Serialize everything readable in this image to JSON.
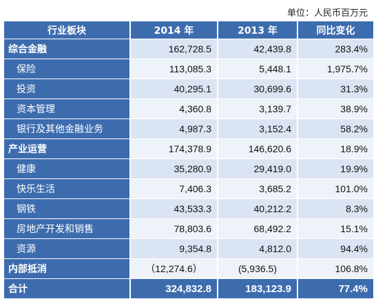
{
  "unit": "单位：人民币百万元",
  "headers": [
    "行业板块",
    "2014 年",
    "2013 年",
    "同比变化"
  ],
  "rows": [
    {
      "label": "综合金融",
      "v2014": "162,728.5",
      "v2013": "42,439.8",
      "change": "283.4%",
      "bold": true,
      "sub": false
    },
    {
      "label": "保险",
      "v2014": "113,085.3",
      "v2013": "5,448.1",
      "change": "1,975.7%",
      "bold": false,
      "sub": true
    },
    {
      "label": "投资",
      "v2014": "40,295.1",
      "v2013": "30,699.6",
      "change": "31.3%",
      "bold": false,
      "sub": true
    },
    {
      "label": "资本管理",
      "v2014": "4,360.8",
      "v2013": "3,139.7",
      "change": "38.9%",
      "bold": false,
      "sub": true
    },
    {
      "label": "银行及其他金融业务",
      "v2014": "4,987.3",
      "v2013": "3,152.4",
      "change": "58.2%",
      "bold": false,
      "sub": true
    },
    {
      "label": "产业运营",
      "v2014": "174,378.9",
      "v2013": "146,620.6",
      "change": "18.9%",
      "bold": true,
      "sub": false
    },
    {
      "label": "健康",
      "v2014": "35,280.9",
      "v2013": "29,419.0",
      "change": "19.9%",
      "bold": false,
      "sub": true
    },
    {
      "label": "快乐生活",
      "v2014": "7,406.3",
      "v2013": "3,685.2",
      "change": "101.0%",
      "bold": false,
      "sub": true
    },
    {
      "label": "钢铁",
      "v2014": "43,533.3",
      "v2013": "40,212.2",
      "change": "8.3%",
      "bold": false,
      "sub": true
    },
    {
      "label": "房地产开发和销售",
      "v2014": "78,803.6",
      "v2013": "68,492.2",
      "change": "15.1%",
      "bold": false,
      "sub": true
    },
    {
      "label": "资源",
      "v2014": "9,354.8",
      "v2013": "4,812.0",
      "change": "94.4%",
      "bold": false,
      "sub": true
    },
    {
      "label": "内部抵消",
      "v2014": "（12,274.6）",
      "v2013": "(5,936.5)",
      "change": "106.8%",
      "bold": true,
      "sub": false,
      "paren": true
    }
  ],
  "total": {
    "label": "合计",
    "v2014": "324,832.8",
    "v2013": "183,123.9",
    "change": "77.4%"
  }
}
